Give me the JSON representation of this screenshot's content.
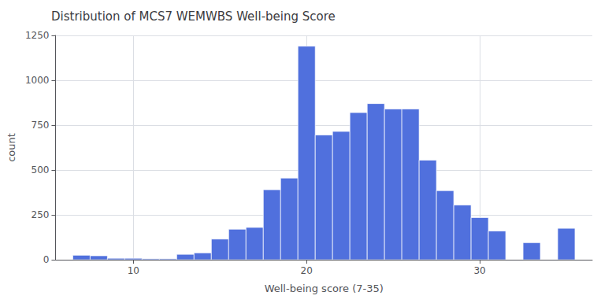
{
  "chart_data": {
    "type": "bar",
    "title": "Distribution of MCS7 WEMWBS Well-being Score",
    "xlabel": "Well-being score (7-35)",
    "ylabel": "count",
    "x": [
      7,
      8,
      9,
      10,
      11,
      12,
      13,
      14,
      15,
      16,
      17,
      18,
      19,
      20,
      21,
      22,
      23,
      24,
      25,
      26,
      27,
      28,
      29,
      30,
      31,
      32,
      33,
      34,
      35
    ],
    "values": [
      25,
      22,
      8,
      8,
      5,
      5,
      30,
      38,
      115,
      170,
      180,
      390,
      455,
      1190,
      695,
      715,
      820,
      870,
      840,
      840,
      555,
      385,
      305,
      235,
      160,
      0,
      95,
      0,
      175
    ],
    "xlim": [
      5.5,
      36.5
    ],
    "xticks": [
      10,
      20,
      30
    ],
    "ylim": [
      0,
      1250
    ],
    "yticks": [
      0,
      250,
      500,
      750,
      1000,
      1250
    ],
    "grid": true
  }
}
